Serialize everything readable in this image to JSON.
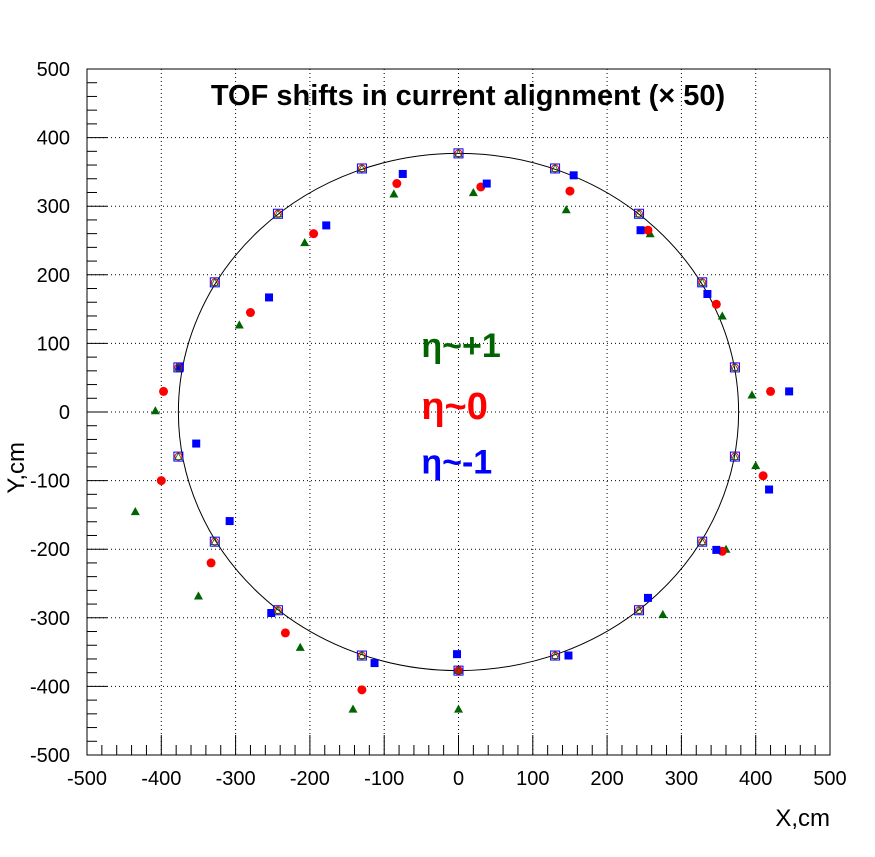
{
  "chart_data": {
    "type": "scatter",
    "title": "TOF shifts in current alignment (× 50)",
    "xlabel": "X,cm",
    "ylabel": "Y,cm",
    "xlim": [
      -500,
      500
    ],
    "ylim": [
      -500,
      500
    ],
    "x_ticks": [
      -500,
      -400,
      -300,
      -200,
      -100,
      0,
      100,
      200,
      300,
      400,
      500
    ],
    "y_ticks": [
      -500,
      -400,
      -300,
      -200,
      -100,
      0,
      100,
      200,
      300,
      400,
      500
    ],
    "grid": true,
    "reference_circle": {
      "center": [
        0,
        0
      ],
      "radius": 377,
      "color": "#000000"
    },
    "annotations": [
      {
        "text": "η~+1",
        "color": "#006400",
        "x": -50,
        "y": 80,
        "size": 34
      },
      {
        "text": "η~0",
        "color": "#ff0000",
        "x": -50,
        "y": -10,
        "size": 38
      },
      {
        "text": "η~-1",
        "color": "#0000ff",
        "x": -50,
        "y": -90,
        "size": 34
      }
    ],
    "reference_points": [
      [
        0,
        377
      ],
      [
        130,
        355
      ],
      [
        243,
        289
      ],
      [
        328,
        189
      ],
      [
        372,
        65
      ],
      [
        372,
        -65
      ],
      [
        328,
        -189
      ],
      [
        243,
        -289
      ],
      [
        130,
        -355
      ],
      [
        0,
        -377
      ],
      [
        -130,
        -355
      ],
      [
        -243,
        -289
      ],
      [
        -328,
        -189
      ],
      [
        -377,
        -65
      ],
      [
        -377,
        65
      ],
      [
        -328,
        189
      ],
      [
        -243,
        289
      ],
      [
        -130,
        355
      ]
    ],
    "series": [
      {
        "marker": "triangle",
        "color": "#006400",
        "points": [
          [
            20,
            320
          ],
          [
            145,
            295
          ],
          [
            258,
            260
          ],
          [
            355,
            140
          ],
          [
            395,
            25
          ],
          [
            400,
            -78
          ],
          [
            360,
            -200
          ],
          [
            275,
            -295
          ],
          [
            0,
            -433
          ],
          [
            -142,
            -433
          ],
          [
            -213,
            -343
          ],
          [
            -350,
            -268
          ],
          [
            -435,
            -145
          ],
          [
            -408,
            2
          ],
          [
            -295,
            127
          ],
          [
            -207,
            247
          ],
          [
            -87,
            318
          ]
        ]
      },
      {
        "marker": "circle",
        "color": "#ff0000",
        "points": [
          [
            30,
            328
          ],
          [
            150,
            322
          ],
          [
            255,
            265
          ],
          [
            347,
            157
          ],
          [
            420,
            30
          ],
          [
            410,
            -93
          ],
          [
            355,
            -203
          ],
          [
            0,
            -377
          ],
          [
            -130,
            -405
          ],
          [
            -233,
            -322
          ],
          [
            -333,
            -220
          ],
          [
            -400,
            -100
          ],
          [
            -397,
            30
          ],
          [
            -280,
            145
          ],
          [
            -195,
            260
          ],
          [
            -83,
            333
          ]
        ]
      },
      {
        "marker": "square",
        "color": "#0000ff",
        "points": [
          [
            38,
            333
          ],
          [
            155,
            345
          ],
          [
            245,
            265
          ],
          [
            335,
            172
          ],
          [
            445,
            30
          ],
          [
            418,
            -113
          ],
          [
            347,
            -201
          ],
          [
            255,
            -271
          ],
          [
            148,
            -355
          ],
          [
            -2,
            -353
          ],
          [
            -113,
            -366
          ],
          [
            -252,
            -293
          ],
          [
            -308,
            -159
          ],
          [
            -353,
            -46
          ],
          [
            -375,
            65
          ],
          [
            -255,
            167
          ],
          [
            -178,
            272
          ],
          [
            -75,
            347
          ]
        ]
      }
    ]
  }
}
